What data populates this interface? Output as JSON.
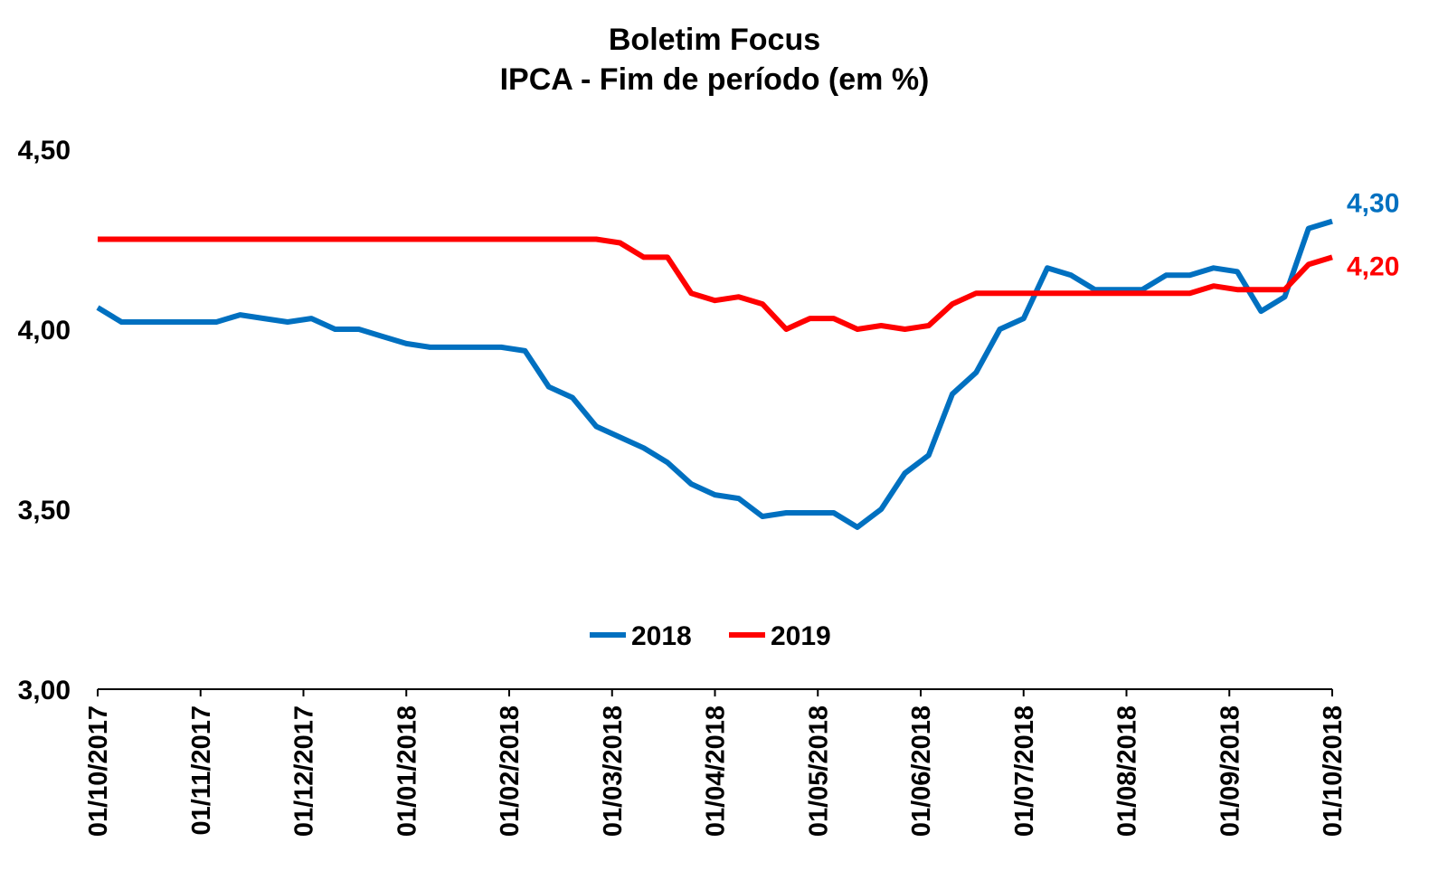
{
  "chart_data": {
    "type": "line",
    "title": "Boletim Focus",
    "subtitle": "IPCA - Fim de período (em %)",
    "ylim": [
      3.0,
      4.5
    ],
    "y_ticks": [
      "3,00",
      "3,50",
      "4,00",
      "4,50"
    ],
    "y_tick_values": [
      3.0,
      3.5,
      4.0,
      4.5
    ],
    "x_tick_labels": [
      "01/10/2017",
      "01/11/2017",
      "01/12/2017",
      "01/01/2018",
      "01/02/2018",
      "01/03/2018",
      "01/04/2018",
      "01/05/2018",
      "01/06/2018",
      "01/07/2018",
      "01/08/2018",
      "01/09/2018",
      "01/10/2018"
    ],
    "grid": false,
    "legend_position": "bottom-center",
    "colors": {
      "2018": "#0070C0",
      "2019": "#FF0000"
    },
    "series": [
      {
        "name": "2018",
        "color": "#0070C0",
        "end_label": "4,30",
        "values": [
          4.06,
          4.02,
          4.02,
          4.02,
          4.02,
          4.02,
          4.04,
          4.03,
          4.02,
          4.03,
          4.0,
          4.0,
          3.98,
          3.96,
          3.95,
          3.95,
          3.95,
          3.95,
          3.94,
          3.84,
          3.81,
          3.73,
          3.7,
          3.67,
          3.63,
          3.57,
          3.54,
          3.53,
          3.48,
          3.49,
          3.49,
          3.49,
          3.45,
          3.5,
          3.6,
          3.65,
          3.82,
          3.88,
          4.0,
          4.03,
          4.17,
          4.15,
          4.11,
          4.11,
          4.11,
          4.15,
          4.15,
          4.17,
          4.16,
          4.05,
          4.09,
          4.28,
          4.3
        ]
      },
      {
        "name": "2019",
        "color": "#FF0000",
        "end_label": "4,20",
        "values": [
          4.25,
          4.25,
          4.25,
          4.25,
          4.25,
          4.25,
          4.25,
          4.25,
          4.25,
          4.25,
          4.25,
          4.25,
          4.25,
          4.25,
          4.25,
          4.25,
          4.25,
          4.25,
          4.25,
          4.25,
          4.25,
          4.25,
          4.24,
          4.2,
          4.2,
          4.1,
          4.08,
          4.09,
          4.07,
          4.0,
          4.03,
          4.03,
          4.0,
          4.01,
          4.0,
          4.01,
          4.07,
          4.1,
          4.1,
          4.1,
          4.1,
          4.1,
          4.1,
          4.1,
          4.1,
          4.1,
          4.1,
          4.12,
          4.11,
          4.11,
          4.11,
          4.18,
          4.2
        ]
      }
    ]
  }
}
